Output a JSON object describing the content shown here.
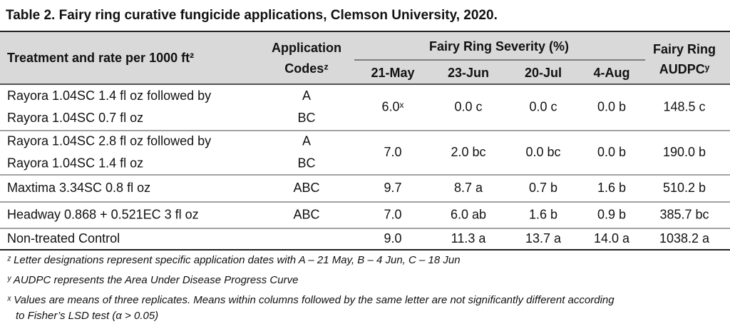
{
  "title": "Table 2. Fairy ring curative fungicide applications, Clemson University, 2020.",
  "table": {
    "headers": {
      "treatment": "Treatment and rate per 1000 ft²",
      "codes": [
        "Application",
        "Codesᶻ"
      ],
      "severity": "Fairy Ring Severity (%)",
      "dates": [
        "21-May",
        "23-Jun",
        "20-Jul",
        "4-Aug"
      ],
      "audpc": [
        "Fairy Ring",
        "AUDPCʸ"
      ]
    },
    "rows": [
      {
        "treatment": [
          "Rayora 1.04SC 1.4 fl oz followed by",
          "Rayora 1.04SC 0.7 fl oz"
        ],
        "codes": [
          "A",
          "BC"
        ],
        "values": [
          "6.0ˣ",
          "0.0 c",
          "0.0 c",
          "0.0 b",
          "148.5 c"
        ]
      },
      {
        "treatment": [
          "Rayora 1.04SC 2.8 fl oz followed by",
          "Rayora 1.04SC 1.4 fl oz"
        ],
        "codes": [
          "A",
          "BC"
        ],
        "values": [
          "7.0",
          "2.0 bc",
          "0.0 bc",
          "0.0 b",
          "190.0 b"
        ]
      },
      {
        "treatment": [
          "Maxtima 3.34SC 0.8 fl oz"
        ],
        "codes": [
          "ABC"
        ],
        "values": [
          "9.7",
          "8.7 a",
          "0.7 b",
          "1.6 b",
          "510.2 b"
        ]
      },
      {
        "treatment": [
          "Headway 0.868 + 0.521EC 3 fl oz"
        ],
        "codes": [
          "ABC"
        ],
        "values": [
          "7.0",
          "6.0 ab",
          "1.6 b",
          "0.9 b",
          "385.7 bc"
        ]
      },
      {
        "treatment": [
          "Non-treated Control"
        ],
        "codes": [],
        "values": [
          "9.0",
          "11.3 a",
          "13.7 a",
          "14.0 a",
          "1038.2 a"
        ]
      }
    ]
  },
  "footnotes": [
    [
      "ᶻ Letter designations represent specific application dates with A – 21 May, B – 4 Jun, C – 18 Jun"
    ],
    [
      "ʸ AUDPC represents the Area Under Disease Progress Curve"
    ],
    [
      "ˣ Values are means of three replicates. Means within columns followed by the same letter are not significantly different according",
      "to Fisher’s LSD test (α > 0.05)"
    ]
  ]
}
